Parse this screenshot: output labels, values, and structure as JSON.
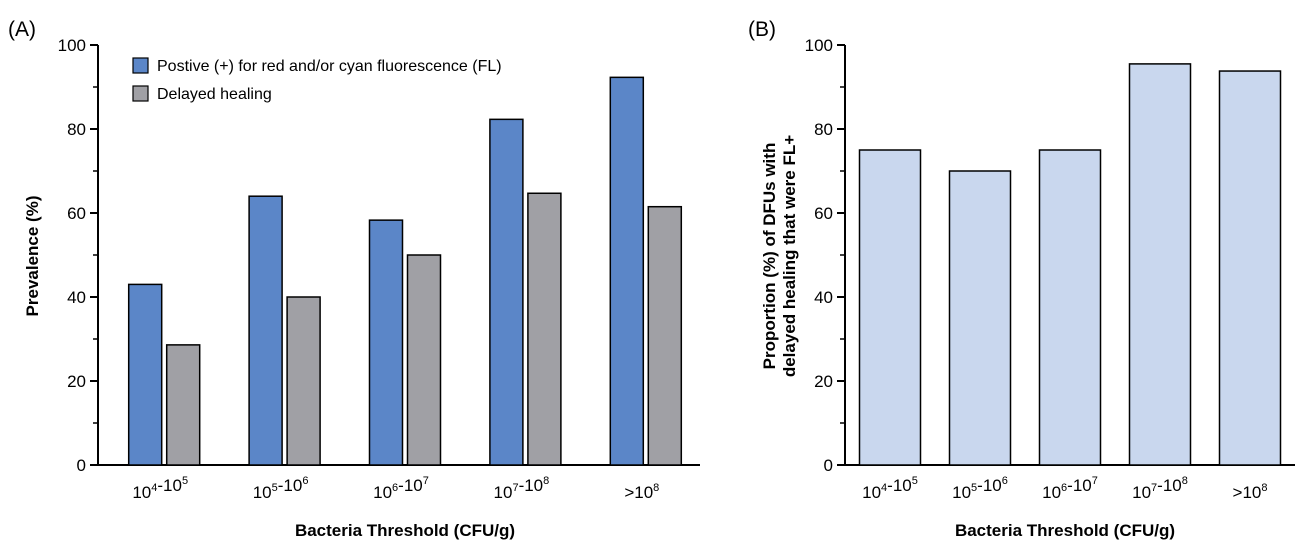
{
  "chart_data": [
    {
      "type": "bar",
      "panel_label": "(A)",
      "categories": [
        "10^4-10^5",
        "10^5-10^6",
        "10^6-10^7",
        "10^7-10^8",
        ">10^8"
      ],
      "series": [
        {
          "name": "Postive (+) for red and/or cyan fluorescence (FL)",
          "color": "#5B86C8",
          "values": [
            43,
            64,
            58.3,
            82.3,
            92.3
          ]
        },
        {
          "name": "Delayed healing",
          "color": "#A0A0A5",
          "values": [
            28.6,
            40,
            50,
            64.7,
            61.5
          ]
        }
      ],
      "xlabel": "Bacteria Threshold (CFU/g)",
      "ylabel": "Prevalence (%)",
      "ylim": [
        0,
        100
      ],
      "yticks": [
        0,
        20,
        40,
        60,
        80,
        100
      ],
      "legend_position": "top-left",
      "grid": false
    },
    {
      "type": "bar",
      "panel_label": "(B)",
      "categories": [
        "10^4-10^5",
        "10^5-10^6",
        "10^6-10^7",
        "10^7-10^8",
        ">10^8"
      ],
      "series": [
        {
          "color": "#C9D7EE",
          "values": [
            75,
            70,
            75,
            95.5,
            93.8
          ]
        }
      ],
      "xlabel": "Bacteria Threshold (CFU/g)",
      "ylabel_lines": [
        "Proportion (%) of DFUs with",
        "delayed healing that were FL+"
      ],
      "ylim": [
        0,
        100
      ],
      "yticks": [
        0,
        20,
        40,
        60,
        80,
        100
      ],
      "grid": false
    }
  ]
}
